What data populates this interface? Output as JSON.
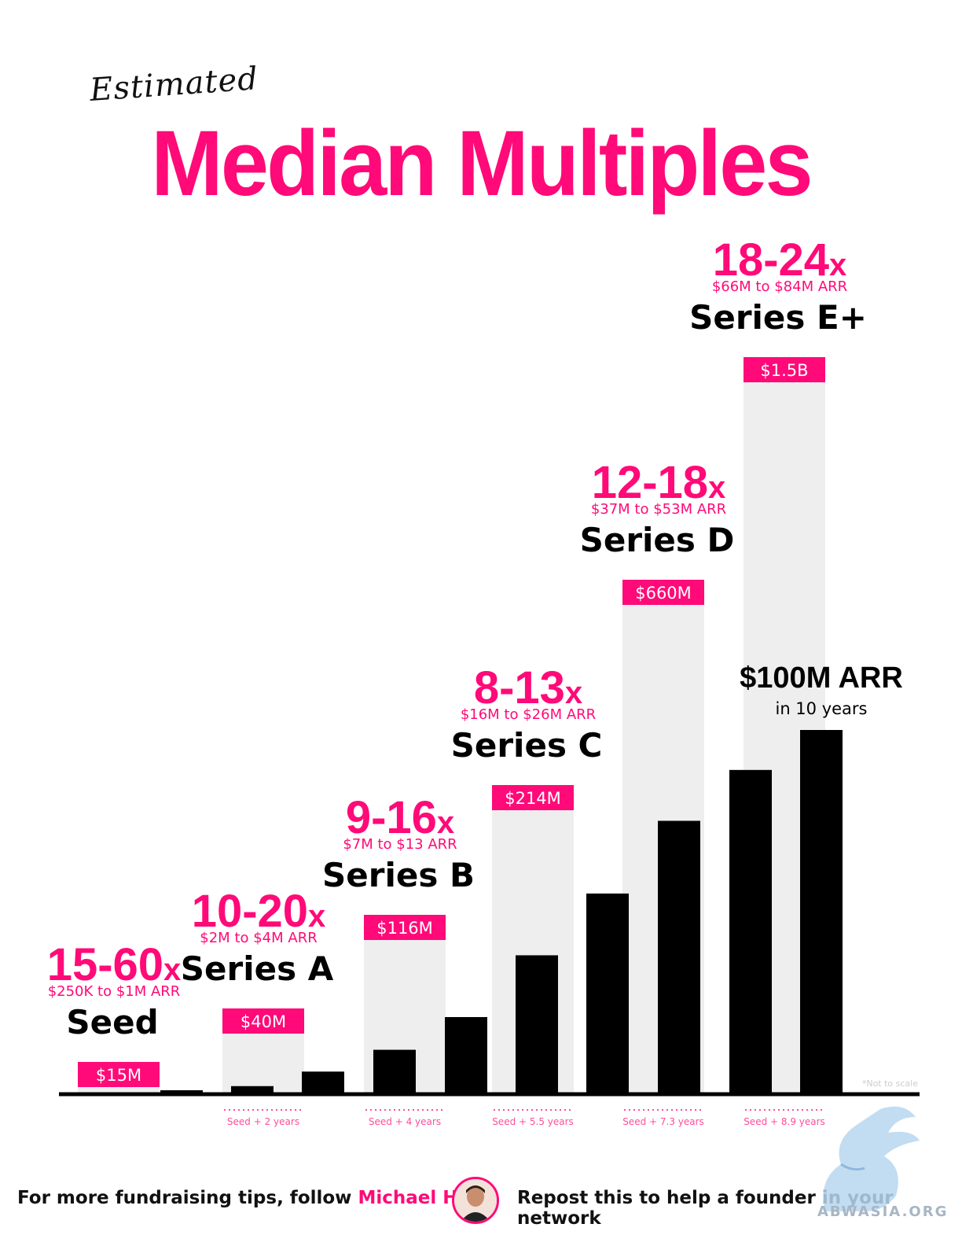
{
  "header": {
    "pretitle": "Estimated",
    "title": "Median Multiples"
  },
  "colors": {
    "accent": "#ff0a78",
    "gray_bar": "#eeeeee",
    "black_bar": "#000000"
  },
  "chart_data": {
    "type": "bar",
    "note": "*Not to scale",
    "stages": [
      {
        "name": "Seed",
        "multiple": "15-60",
        "multiple_suffix": "x",
        "arr_range": "$250K to $1M ARR",
        "valuation_label": "$15M",
        "valuation": 15,
        "seed_years": ""
      },
      {
        "name": "Series A",
        "multiple": "10-20",
        "multiple_suffix": "x",
        "arr_range": "$2M to $4M ARR",
        "valuation_label": "$40M",
        "valuation": 40,
        "seed_years": "Seed + 2 years"
      },
      {
        "name": "Series B",
        "multiple": "9-16",
        "multiple_suffix": "x",
        "arr_range": "$7M to $13 ARR",
        "valuation_label": "$116M",
        "valuation": 116,
        "seed_years": "Seed + 4 years"
      },
      {
        "name": "Series C",
        "multiple": "8-13",
        "multiple_suffix": "x",
        "arr_range": "$16M to $26M ARR",
        "valuation_label": "$214M",
        "valuation": 214,
        "seed_years": "Seed + 5.5 years"
      },
      {
        "name": "Series D",
        "multiple": "12-18",
        "multiple_suffix": "x",
        "arr_range": "$37M to $53M ARR",
        "valuation_label": "$660M",
        "valuation": 660,
        "seed_years": "Seed + 7.3 years"
      },
      {
        "name": "Series E+",
        "multiple": "18-24",
        "multiple_suffix": "x",
        "arr_range": "$66M to $84M ARR",
        "valuation_label": "$1.5B",
        "valuation": 1500,
        "seed_years": "Seed + 8.9 years"
      }
    ],
    "arr_growth_bars": [
      0.3,
      2,
      6,
      12,
      21,
      38,
      55,
      75,
      89,
      100
    ],
    "arr_annotation": {
      "line1": "$100M ARR",
      "line2": "in 10 years"
    }
  },
  "footer": {
    "follow_prefix": "For more fundraising tips, follow ",
    "follow_name": "Michael Ho",
    "repost": "Repost this to help a founder in your network"
  },
  "watermark": "ABWASIA.ORG"
}
